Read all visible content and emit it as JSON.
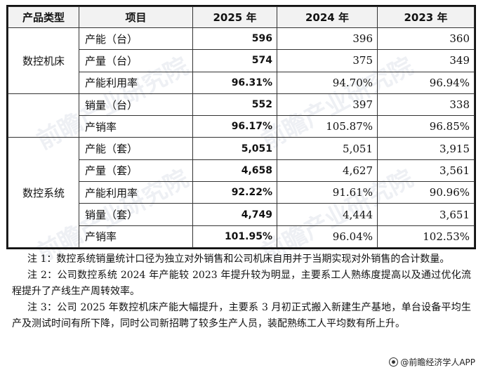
{
  "table": {
    "headers": [
      "产品类型",
      "项目",
      "2025 年",
      "2024 年",
      "2023 年"
    ],
    "groups": [
      {
        "type": "数控机床",
        "rows": [
          {
            "item": "产能（台）",
            "v2025": "596",
            "v2024": "396",
            "v2023": "360"
          },
          {
            "item": "产量（台）",
            "v2025": "574",
            "v2024": "375",
            "v2023": "349"
          },
          {
            "item": "产能利用率",
            "v2025": "96.31%",
            "v2024": "94.70%",
            "v2023": "96.94%"
          }
        ]
      },
      {
        "type": "",
        "rows": [
          {
            "item": "销量（台）",
            "v2025": "552",
            "v2024": "397",
            "v2023": "338"
          },
          {
            "item": "产销率",
            "v2025": "96.17%",
            "v2024": "105.87%",
            "v2023": "96.85%"
          }
        ]
      },
      {
        "type": "数控系统",
        "rows": [
          {
            "item": "产能（套）",
            "v2025": "5,051",
            "v2024": "5,051",
            "v2023": "3,915"
          },
          {
            "item": "产量（套）",
            "v2025": "4,658",
            "v2024": "4,627",
            "v2023": "3,561"
          },
          {
            "item": "产能利用率",
            "v2025": "92.22%",
            "v2024": "91.61%",
            "v2023": "90.96%"
          },
          {
            "item": "销量（套）",
            "v2025": "4,749",
            "v2024": "4,444",
            "v2023": "3,651"
          },
          {
            "item": "产销率",
            "v2025": "101.95%",
            "v2024": "96.04%",
            "v2023": "102.53%"
          }
        ]
      }
    ]
  },
  "notes": [
    "注 1：数控系统销量统计口径为独立对外销售和公司机床自用并于当期实现对外销售的合计数量。",
    "注 2：公司数控系统 2024 年产能较 2023 年提升较为明显，主要系工人熟练度提高以及通过优化流程提升了产线生产周转效率。",
    "注 3：公司 2025 年数控机床产能大幅提升，主要系 3 月初正式搬入新建生产基地，单台设备平均生产及测试时间有所下降，同时公司新招聘了较多生产人员，装配熟练工人平均数有所上升。"
  ],
  "footer": {
    "icon": "qianzhan-logo-icon",
    "text": "@前瞻经济学人APP"
  },
  "watermark": "前瞻产业研究院"
}
